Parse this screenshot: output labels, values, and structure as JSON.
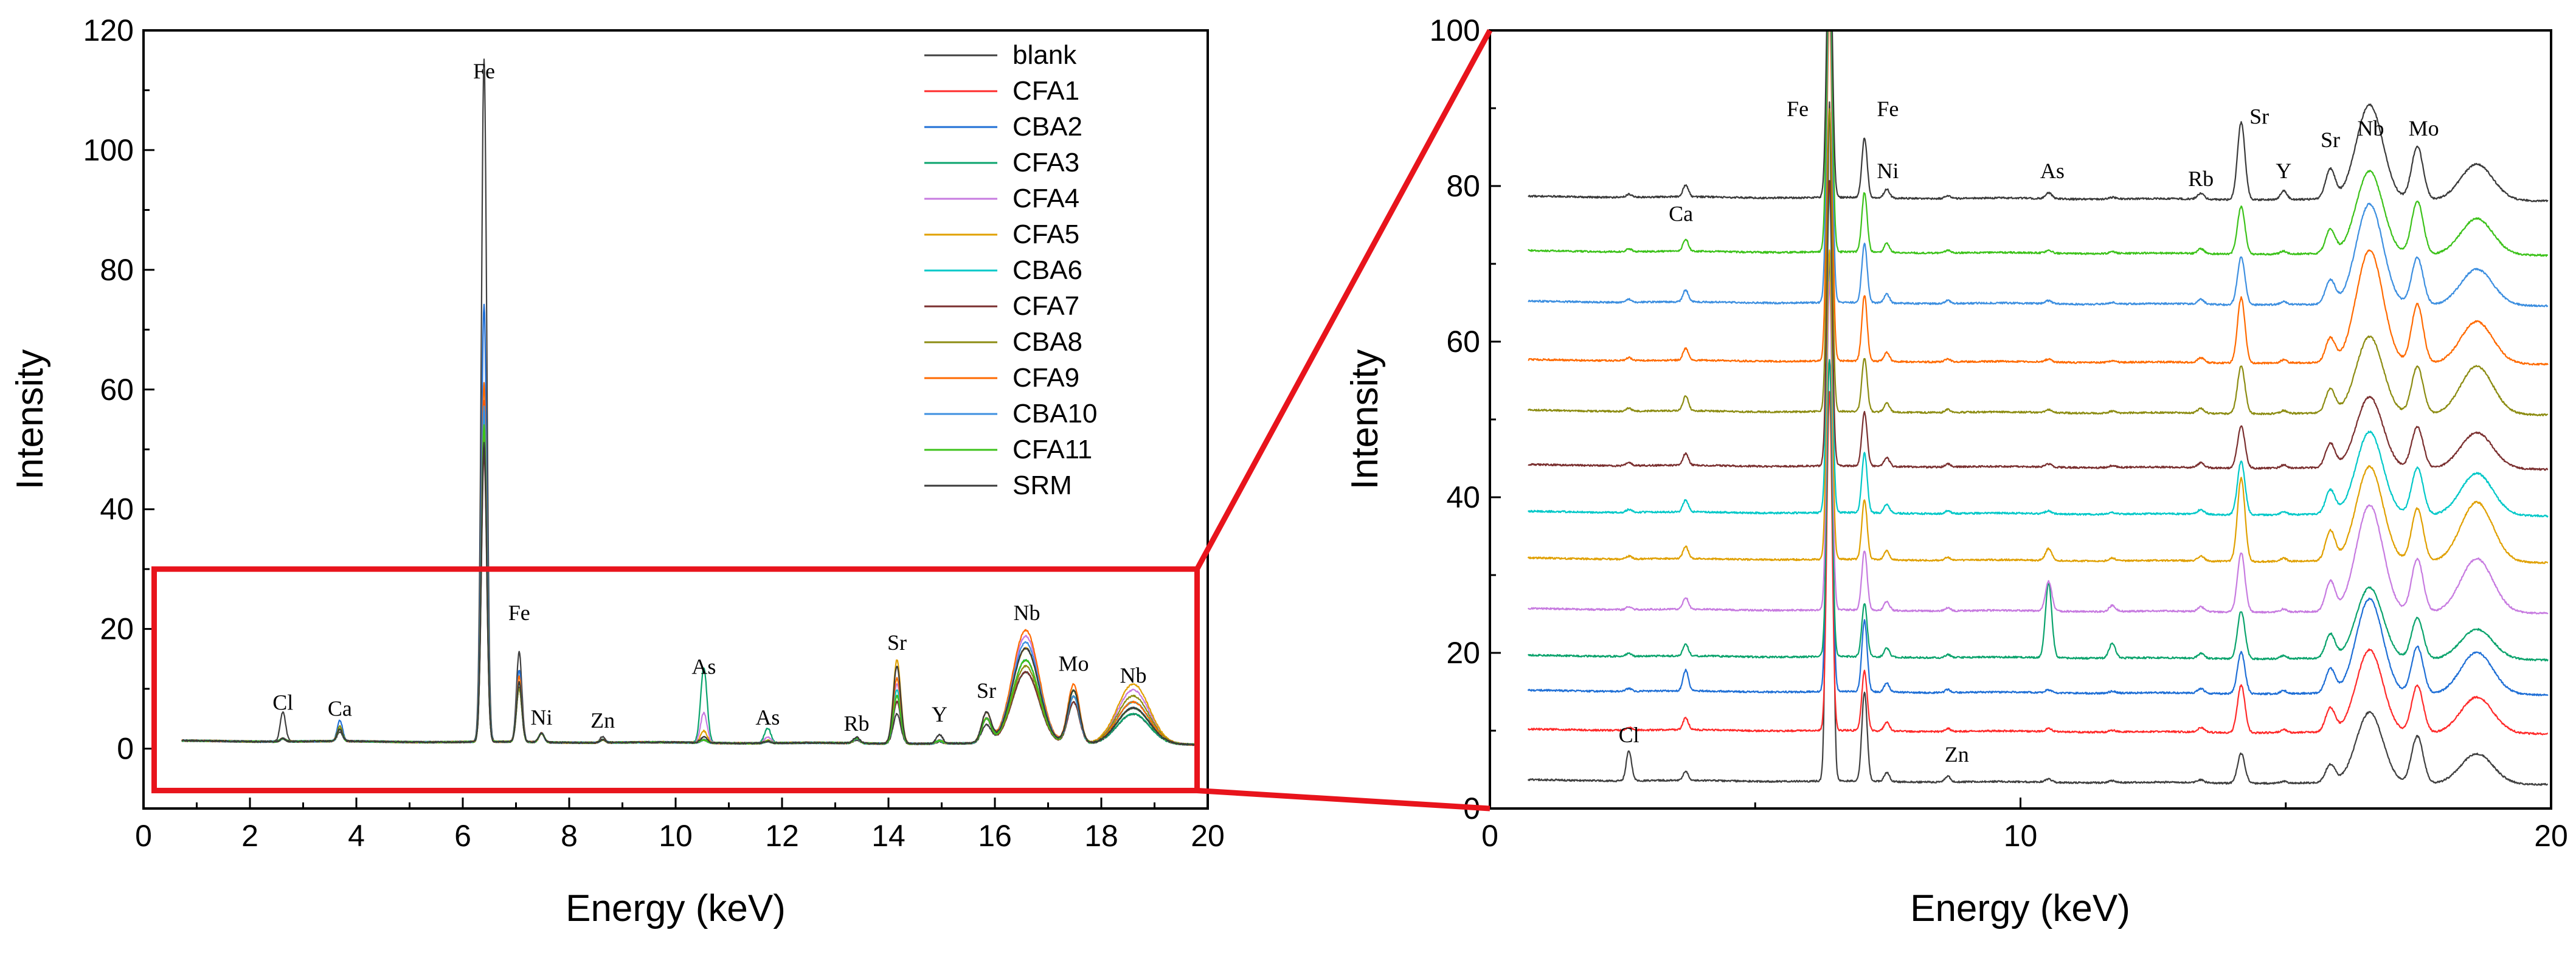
{
  "colors": {
    "blank": "#404040",
    "CFA1": "#ff2a2a",
    "CBA2": "#1f6fd6",
    "CFA3": "#0aa36c",
    "CFA4": "#c77be0",
    "CFA5": "#e0a000",
    "CBA6": "#00c8c8",
    "CFA7": "#7a2f2f",
    "CBA8": "#8c8c12",
    "CFA9": "#ff6a00",
    "CBA10": "#3d8fe0",
    "CFA11": "#3cc21a",
    "SRM": "#3a3a3a",
    "zoom_box": "#e8141c"
  },
  "chart_data": [
    {
      "type": "line",
      "panel": "left",
      "xlabel": "Energy (keV)",
      "ylabel": "Intensity",
      "xlim": [
        0,
        20
      ],
      "ylim": [
        -10,
        120
      ],
      "xticks": [
        0,
        2,
        4,
        6,
        8,
        10,
        12,
        14,
        16,
        18,
        20
      ],
      "yticks": [
        0,
        20,
        40,
        60,
        80,
        100,
        120
      ],
      "legend_position": "top-right",
      "legend": [
        "blank",
        "CFA1",
        "CBA2",
        "CFA3",
        "CFA4",
        "CFA5",
        "CBA6",
        "CFA7",
        "CBA8",
        "CFA9",
        "CBA10",
        "CFA11",
        "SRM"
      ],
      "zoom_region": {
        "x": [
          0.2,
          19.8
        ],
        "y": [
          -7,
          30
        ]
      },
      "peak_labels": [
        {
          "text": "Fe",
          "x": 6.4,
          "y": 112
        },
        {
          "text": "Fe",
          "x": 7.06,
          "y": 21.5
        },
        {
          "text": "Cl",
          "x": 2.62,
          "y": 6.5
        },
        {
          "text": "Ca",
          "x": 3.69,
          "y": 5.5
        },
        {
          "text": "Ni",
          "x": 7.48,
          "y": 4
        },
        {
          "text": "Zn",
          "x": 8.63,
          "y": 3.5
        },
        {
          "text": "As",
          "x": 10.53,
          "y": 12.5
        },
        {
          "text": "As",
          "x": 11.73,
          "y": 4
        },
        {
          "text": "Rb",
          "x": 13.4,
          "y": 3
        },
        {
          "text": "Sr",
          "x": 14.16,
          "y": 16.5
        },
        {
          "text": "Y",
          "x": 14.96,
          "y": 4.5
        },
        {
          "text": "Sr",
          "x": 15.84,
          "y": 8.5
        },
        {
          "text": "Nb",
          "x": 16.6,
          "y": 21.5
        },
        {
          "text": "Mo",
          "x": 17.48,
          "y": 13
        },
        {
          "text": "Nb",
          "x": 18.6,
          "y": 11
        }
      ],
      "peaks": [
        {
          "element": "Cl",
          "energy": 2.62
        },
        {
          "element": "Ca",
          "energy": 3.69
        },
        {
          "element": "Fe",
          "energy": 6.4
        },
        {
          "element": "Fe",
          "energy": 7.06
        },
        {
          "element": "Ni",
          "energy": 7.48
        },
        {
          "element": "Zn",
          "energy": 8.63
        },
        {
          "element": "As",
          "energy": 10.53
        },
        {
          "element": "As",
          "energy": 11.73
        },
        {
          "element": "Rb",
          "energy": 13.4
        },
        {
          "element": "Sr",
          "energy": 14.16
        },
        {
          "element": "Y",
          "energy": 14.96
        },
        {
          "element": "Sr",
          "energy": 15.84
        },
        {
          "element": "Nb",
          "energy": 16.58
        },
        {
          "element": "Mo",
          "energy": 17.48
        },
        {
          "element": "Nb",
          "energy": 18.6
        }
      ],
      "series": [
        {
          "name": "blank",
          "peak_heights": {
            "Cl": 5,
            "Ca": 1.5,
            "Fe": 114,
            "Fe2": 15,
            "Ni": 1.5,
            "Zn": 1,
            "As": 0.5,
            "As2": 0.3,
            "Rb": 0.5,
            "Sr": 5,
            "Y": 0.3,
            "Sr2": 3,
            "Nb": 12,
            "Mo": 8,
            "Nb2": 5
          }
        },
        {
          "name": "CFA1",
          "peak_heights": {
            "Cl": 0.5,
            "Ca": 2,
            "Fe": 57,
            "Fe2": 10,
            "Ni": 1.5,
            "Zn": 0.5,
            "As": 0.5,
            "As2": 0.3,
            "Rb": 0.8,
            "Sr": 8,
            "Y": 0.5,
            "Sr2": 4,
            "Nb": 14,
            "Mo": 8,
            "Nb2": 6
          }
        },
        {
          "name": "CBA2",
          "peak_heights": {
            "Cl": 0.5,
            "Ca": 3.5,
            "Fe": 73,
            "Fe2": 12,
            "Ni": 1.5,
            "Zn": 0.5,
            "As": 0.5,
            "As2": 0.3,
            "Rb": 0.8,
            "Sr": 7,
            "Y": 0.5,
            "Sr2": 4,
            "Nb": 16,
            "Mo": 8,
            "Nb2": 7
          }
        },
        {
          "name": "CFA3",
          "peak_heights": {
            "Cl": 0.5,
            "Ca": 2,
            "Fe": 50,
            "Fe2": 9,
            "Ni": 1.5,
            "Zn": 0.5,
            "As": 12.5,
            "As2": 2.5,
            "Rb": 0.8,
            "Sr": 8,
            "Y": 0.5,
            "Sr2": 4,
            "Nb": 12,
            "Mo": 7,
            "Nb2": 5
          }
        },
        {
          "name": "CFA4",
          "peak_heights": {
            "Cl": 0.5,
            "Ca": 2,
            "Fe": 55,
            "Fe2": 10,
            "Ni": 1.5,
            "Zn": 0.5,
            "As": 5,
            "As2": 1,
            "Rb": 0.8,
            "Sr": 10,
            "Y": 0.5,
            "Sr2": 5,
            "Nb": 18,
            "Mo": 9,
            "Nb2": 9
          }
        },
        {
          "name": "CFA5",
          "peak_heights": {
            "Cl": 0.5,
            "Ca": 2,
            "Fe": 52,
            "Fe2": 10,
            "Ni": 1.5,
            "Zn": 0.5,
            "As": 2,
            "As2": 0.5,
            "Rb": 0.8,
            "Sr": 14,
            "Y": 0.5,
            "Sr2": 5,
            "Nb": 16,
            "Mo": 9,
            "Nb2": 10
          }
        },
        {
          "name": "CBA6",
          "peak_heights": {
            "Cl": 0.5,
            "Ca": 2,
            "Fe": 54,
            "Fe2": 10,
            "Ni": 1.5,
            "Zn": 0.5,
            "As": 0.5,
            "As2": 0.3,
            "Rb": 0.8,
            "Sr": 9,
            "Y": 0.5,
            "Sr2": 4,
            "Nb": 14,
            "Mo": 8,
            "Nb2": 7
          }
        },
        {
          "name": "CFA7",
          "peak_heights": {
            "Cl": 0.5,
            "Ca": 2,
            "Fe": 48,
            "Fe2": 9,
            "Ni": 1.5,
            "Zn": 0.5,
            "As": 0.5,
            "As2": 0.3,
            "Rb": 0.8,
            "Sr": 7,
            "Y": 0.5,
            "Sr2": 4,
            "Nb": 12,
            "Mo": 7,
            "Nb2": 6
          }
        },
        {
          "name": "CBA8",
          "peak_heights": {
            "Cl": 0.5,
            "Ca": 2.5,
            "Fe": 51,
            "Fe2": 9,
            "Ni": 1.5,
            "Zn": 0.5,
            "As": 0.5,
            "As2": 0.3,
            "Rb": 0.8,
            "Sr": 8,
            "Y": 0.5,
            "Sr2": 4,
            "Nb": 13,
            "Mo": 8,
            "Nb2": 8
          }
        },
        {
          "name": "CFA9",
          "peak_heights": {
            "Cl": 0.5,
            "Ca": 2,
            "Fe": 60,
            "Fe2": 11,
            "Ni": 1.5,
            "Zn": 0.5,
            "As": 0.5,
            "As2": 0.3,
            "Rb": 0.8,
            "Sr": 11,
            "Y": 0.5,
            "Sr2": 4,
            "Nb": 19,
            "Mo": 10,
            "Nb2": 7
          }
        },
        {
          "name": "CBA10",
          "peak_heights": {
            "Cl": 0.5,
            "Ca": 2,
            "Fe": 56,
            "Fe2": 10,
            "Ni": 1.5,
            "Zn": 0.5,
            "As": 0.5,
            "As2": 0.3,
            "Rb": 0.8,
            "Sr": 8,
            "Y": 0.5,
            "Sr2": 4,
            "Nb": 17,
            "Mo": 8,
            "Nb2": 6
          }
        },
        {
          "name": "CFA11",
          "peak_heights": {
            "Cl": 0.5,
            "Ca": 2,
            "Fe": 53,
            "Fe2": 10,
            "Ni": 1.5,
            "Zn": 0.5,
            "As": 0.5,
            "As2": 0.3,
            "Rb": 0.8,
            "Sr": 8,
            "Y": 0.5,
            "Sr2": 4,
            "Nb": 14,
            "Mo": 9,
            "Nb2": 6
          }
        },
        {
          "name": "SRM",
          "peak_heights": {
            "Cl": 0.5,
            "Ca": 2,
            "Fe": 50,
            "Fe2": 10,
            "Ni": 1.5,
            "Zn": 0.5,
            "As": 1,
            "As2": 0.3,
            "Rb": 1,
            "Sr": 13,
            "Y": 1.5,
            "Sr2": 5,
            "Nb": 16,
            "Mo": 9,
            "Nb2": 6
          }
        }
      ]
    },
    {
      "type": "line",
      "panel": "right",
      "subtype": "stacked spectra (zoom)",
      "xlabel": "Energy (keV)",
      "ylabel": "Intensity",
      "xlim": [
        0,
        20
      ],
      "ylim": [
        0,
        100
      ],
      "xticks": [
        0,
        10,
        20
      ],
      "yticks": [
        0,
        20,
        40,
        60,
        80,
        100
      ],
      "stack_order_bottom_to_top": [
        "blank",
        "CFA1",
        "CBA2",
        "CFA3",
        "CFA4",
        "CFA5",
        "CBA6",
        "CFA7",
        "CBA8",
        "CFA9",
        "CBA10",
        "CFA11",
        "SRM"
      ],
      "baselines": [
        2.5,
        9,
        14,
        18.5,
        24.5,
        31,
        37,
        43,
        50,
        56.5,
        64,
        70.5,
        77.5
      ],
      "peak_labels": [
        {
          "text": "Fe",
          "x": 5.8,
          "y": 89
        },
        {
          "text": "Fe",
          "x": 7.5,
          "y": 89
        },
        {
          "text": "Ni",
          "x": 7.5,
          "y": 81
        },
        {
          "text": "Ca",
          "x": 3.6,
          "y": 75.5
        },
        {
          "text": "As",
          "x": 10.6,
          "y": 81
        },
        {
          "text": "Rb",
          "x": 13.4,
          "y": 80
        },
        {
          "text": "Sr",
          "x": 14.5,
          "y": 88
        },
        {
          "text": "Y",
          "x": 14.96,
          "y": 81
        },
        {
          "text": "Sr",
          "x": 15.84,
          "y": 85
        },
        {
          "text": "Nb",
          "x": 16.6,
          "y": 86.5
        },
        {
          "text": "Mo",
          "x": 17.6,
          "y": 86.5
        },
        {
          "text": "Cl",
          "x": 2.62,
          "y": 8.5
        },
        {
          "text": "Zn",
          "x": 8.8,
          "y": 6
        }
      ]
    }
  ]
}
